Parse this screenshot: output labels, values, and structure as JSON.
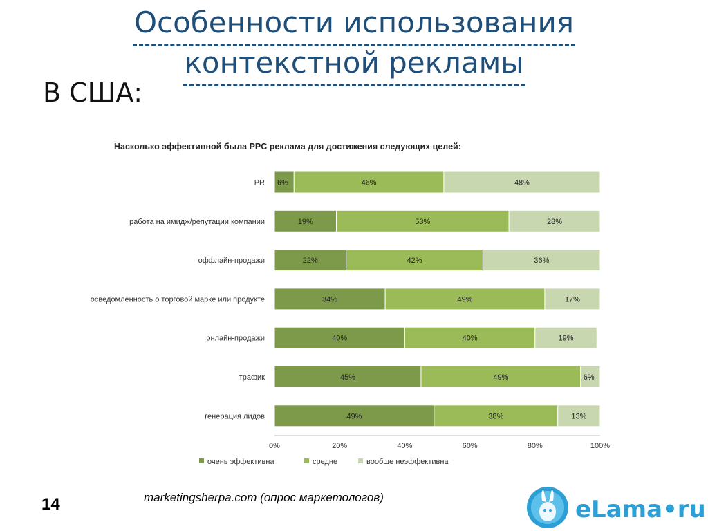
{
  "slide": {
    "title_line1": "Особенности использования",
    "title_line2": "контекстной рекламы",
    "subtitle": "В США:",
    "page_number": "14",
    "source": "marketingsherpa.com (опрос маркетологов)",
    "logo_text": "eLama•ru"
  },
  "colors": {
    "very": "#7d9a4b",
    "medium": "#9bbb59",
    "none": "#c8d7af",
    "title": "#1f4e79",
    "logo": "#2b9fd6"
  },
  "chart_data": {
    "type": "bar",
    "orientation": "horizontal",
    "stacked": true,
    "title": "Насколько эффективной была PPC реклама для достижения следующих целей:",
    "categories": [
      "PR",
      "работа на имидж/репутации компании",
      "оффлайн-продажи",
      "осведомленность о торговой марке или продукте",
      "онлайн-продажи",
      "трафик",
      "генерация лидов"
    ],
    "series": [
      {
        "name": "очень эффективна",
        "values": [
          6,
          19,
          22,
          34,
          40,
          45,
          49
        ]
      },
      {
        "name": "средне",
        "values": [
          46,
          53,
          42,
          49,
          40,
          49,
          38
        ]
      },
      {
        "name": "вообще неэффективна",
        "values": [
          48,
          28,
          36,
          17,
          19,
          6,
          13
        ]
      }
    ],
    "xlim": [
      0,
      100
    ],
    "x_ticks": [
      "0%",
      "20%",
      "40%",
      "60%",
      "80%",
      "100%"
    ],
    "value_suffix": "%",
    "legend_position": "bottom"
  }
}
